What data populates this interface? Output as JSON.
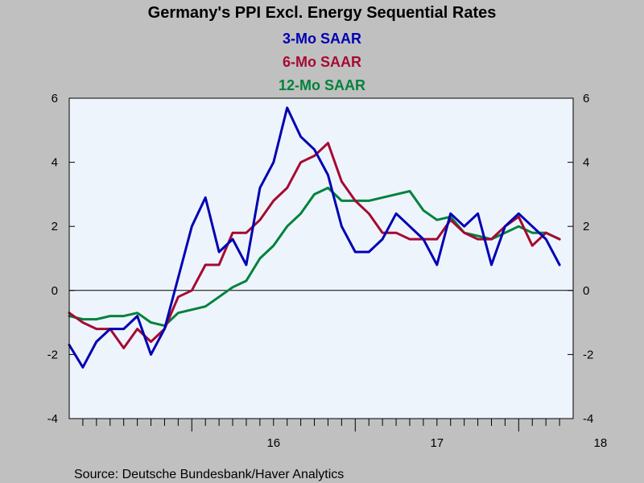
{
  "chart_data": {
    "type": "line",
    "title": "Germany's PPI Excl. Energy Sequential Rates",
    "source": "Source:  Deutsche Bundesbank/Haver Analytics",
    "ylim": [
      -4,
      6
    ],
    "yticks": [
      -4,
      -2,
      0,
      2,
      4,
      6
    ],
    "xlim": [
      2015.25,
      2018.3333
    ],
    "xticks": [
      {
        "label": "16",
        "x": 2016.0
      },
      {
        "label": "17",
        "x": 2017.0
      },
      {
        "label": "18",
        "x": 2018.0
      }
    ],
    "grid": false,
    "zero_line": true,
    "dual_y_axis": true,
    "legend": "top-center",
    "x": [
      "2015-04",
      "2015-05",
      "2015-06",
      "2015-07",
      "2015-08",
      "2015-09",
      "2015-10",
      "2015-11",
      "2015-12",
      "2016-01",
      "2016-02",
      "2016-03",
      "2016-04",
      "2016-05",
      "2016-06",
      "2016-07",
      "2016-08",
      "2016-09",
      "2016-10",
      "2016-11",
      "2016-12",
      "2017-01",
      "2017-02",
      "2017-03",
      "2017-04",
      "2017-05",
      "2017-06",
      "2017-07",
      "2017-08",
      "2017-09",
      "2017-10",
      "2017-11",
      "2017-12",
      "2018-01",
      "2018-02",
      "2018-03",
      "2018-04"
    ],
    "series": [
      {
        "name": "3-Mo SAAR",
        "color": "#0000b4",
        "values": [
          -1.7,
          -2.4,
          -1.6,
          -1.2,
          -1.2,
          -0.8,
          -2.0,
          -1.2,
          0.4,
          2.0,
          2.9,
          1.2,
          1.6,
          0.8,
          3.2,
          4.0,
          5.7,
          4.8,
          4.4,
          3.6,
          2.0,
          1.2,
          1.2,
          1.6,
          2.4,
          2.0,
          1.6,
          0.8,
          2.4,
          2.0,
          2.4,
          0.8,
          2.0,
          2.4,
          2.0,
          1.6,
          0.8
        ]
      },
      {
        "name": "6-Mo SAAR",
        "color": "#a50a32",
        "values": [
          -0.7,
          -1.0,
          -1.2,
          -1.2,
          -1.8,
          -1.2,
          -1.6,
          -1.2,
          -0.2,
          0.0,
          0.8,
          0.8,
          1.8,
          1.8,
          2.2,
          2.8,
          3.2,
          4.0,
          4.2,
          4.6,
          3.4,
          2.8,
          2.4,
          1.8,
          1.8,
          1.6,
          1.6,
          1.6,
          2.2,
          1.8,
          1.6,
          1.6,
          2.0,
          2.3,
          1.4,
          1.8,
          1.6
        ]
      },
      {
        "name": "12-Mo SAAR",
        "color": "#00823c",
        "values": [
          -0.8,
          -0.9,
          -0.9,
          -0.8,
          -0.8,
          -0.7,
          -1.0,
          -1.1,
          -0.7,
          -0.6,
          -0.5,
          -0.2,
          0.1,
          0.3,
          1.0,
          1.4,
          2.0,
          2.4,
          3.0,
          3.2,
          2.8,
          2.8,
          2.8,
          2.9,
          3.0,
          3.1,
          2.5,
          2.2,
          2.3,
          1.8,
          1.7,
          1.6,
          1.8,
          2.0,
          1.8,
          1.8,
          1.6
        ]
      }
    ]
  }
}
